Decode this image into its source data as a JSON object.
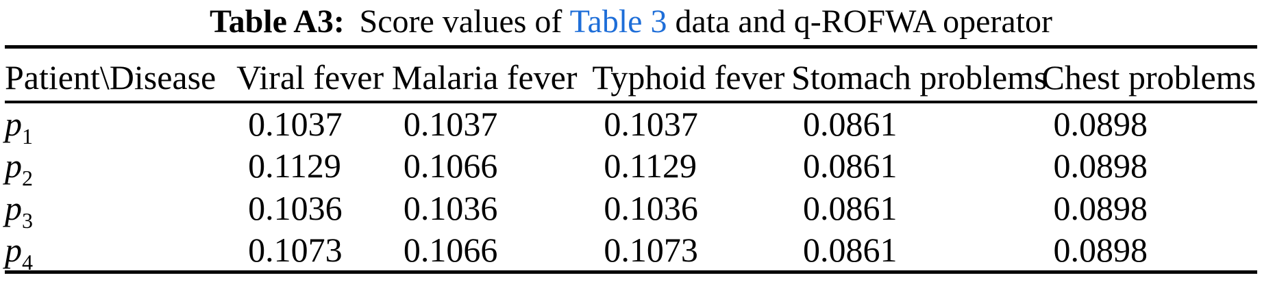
{
  "colors": {
    "text": "#000000",
    "link_blue": "#1e6ed8",
    "rule": "#000000"
  },
  "caption": {
    "label": "Table A3:",
    "pre_link": "Score values of",
    "link": "Table 3",
    "post_link": "data and q-ROFWA operator"
  },
  "table": {
    "columns": [
      "Patient\\Disease",
      "Viral fever",
      "Malaria fever",
      "Typhoid fever",
      "Stomach problems",
      "Chest problems"
    ],
    "rows": [
      {
        "patient_base": "p",
        "patient_sub": "1",
        "values": [
          "0.1037",
          "0.1037",
          "0.1037",
          "0.0861",
          "0.0898"
        ]
      },
      {
        "patient_base": "p",
        "patient_sub": "2",
        "values": [
          "0.1129",
          "0.1066",
          "0.1129",
          "0.0861",
          "0.0898"
        ]
      },
      {
        "patient_base": "p",
        "patient_sub": "3",
        "values": [
          "0.1036",
          "0.1036",
          "0.1036",
          "0.0861",
          "0.0898"
        ]
      },
      {
        "patient_base": "p",
        "patient_sub": "4",
        "values": [
          "0.1073",
          "0.1066",
          "0.1073",
          "0.0861",
          "0.0898"
        ]
      }
    ]
  }
}
